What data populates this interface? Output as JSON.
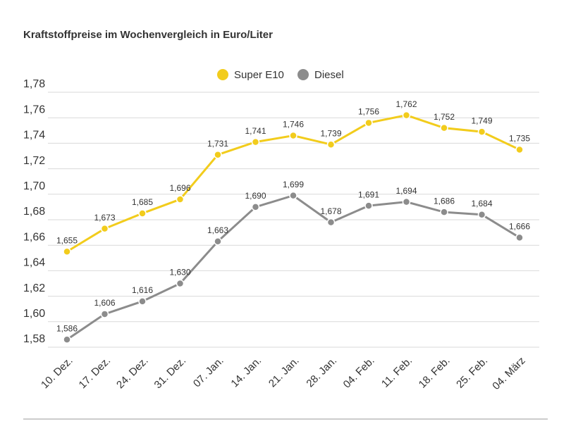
{
  "chart_data": {
    "type": "line",
    "title": "Kraftstoffpreise im Wochenvergleich in Euro/Liter",
    "categories": [
      "10. Dez.",
      "17. Dez.",
      "24. Dez.",
      "31. Dez.",
      "07. Jan.",
      "14. Jan.",
      "21. Jan.",
      "28. Jan.",
      "04. Feb.",
      "11. Feb.",
      "18. Feb.",
      "25. Feb.",
      "04. März"
    ],
    "series": [
      {
        "name": "Super E10",
        "color": "#f2cc1c",
        "values": [
          1.655,
          1.673,
          1.685,
          1.696,
          1.731,
          1.741,
          1.746,
          1.739,
          1.756,
          1.762,
          1.752,
          1.749,
          1.735
        ],
        "value_labels": [
          "1,655",
          "1,673",
          "1,685",
          "1,696",
          "1,731",
          "1,741",
          "1,746",
          "1,739",
          "1,756",
          "1,762",
          "1,752",
          "1,749",
          "1,735"
        ]
      },
      {
        "name": "Diesel",
        "color": "#8c8c8c",
        "values": [
          1.586,
          1.606,
          1.616,
          1.63,
          1.663,
          1.69,
          1.699,
          1.678,
          1.691,
          1.694,
          1.686,
          1.684,
          1.666
        ],
        "value_labels": [
          "1,586",
          "1,606",
          "1,616",
          "1,630",
          "1,663",
          "1,690",
          "1,699",
          "1,678",
          "1,691",
          "1,694",
          "1,686",
          "1,684",
          "1,666"
        ]
      }
    ],
    "ylim": [
      1.58,
      1.78
    ],
    "yticks": [
      {
        "value": 1.58,
        "label": "1,58"
      },
      {
        "value": 1.6,
        "label": "1,60"
      },
      {
        "value": 1.62,
        "label": "1,62"
      },
      {
        "value": 1.64,
        "label": "1,64"
      },
      {
        "value": 1.66,
        "label": "1,66"
      },
      {
        "value": 1.68,
        "label": "1,68"
      },
      {
        "value": 1.7,
        "label": "1,70"
      },
      {
        "value": 1.72,
        "label": "1,72"
      },
      {
        "value": 1.74,
        "label": "1,74"
      },
      {
        "value": 1.76,
        "label": "1,76"
      },
      {
        "value": 1.78,
        "label": "1,78"
      }
    ],
    "grid": true
  }
}
